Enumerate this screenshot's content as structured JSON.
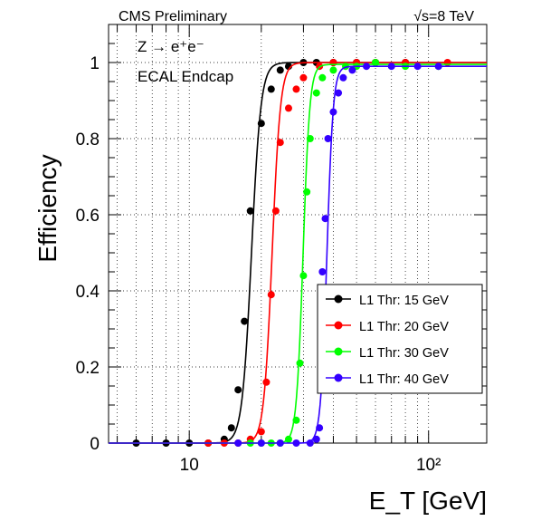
{
  "chart_data": {
    "type": "line",
    "header_left": "CMS Preliminary",
    "header_right": "√s=8 TeV",
    "annotations": [
      "Z → e⁺e⁻",
      "ECAL Endcap"
    ],
    "title": "",
    "xlabel": "E_T [GeV]",
    "ylabel": "Efficiency",
    "xscale": "log",
    "xlim": [
      4.6,
      175
    ],
    "ylim": [
      0,
      1.1
    ],
    "x_tick_labels": [
      "10",
      "10²"
    ],
    "y_tick_labels": [
      "0",
      "0.2",
      "0.4",
      "0.6",
      "0.8",
      "1"
    ],
    "y_ticks": [
      0,
      0.2,
      0.4,
      0.6,
      0.8,
      1
    ],
    "grid": true,
    "legend_position": "bottom-right",
    "series": [
      {
        "name": "L1 Thr: 15 GeV",
        "color": "#000000",
        "x": [
          6,
          8,
          10,
          12,
          14,
          15,
          16,
          17,
          18,
          20,
          22,
          24,
          26,
          30,
          34,
          40,
          50,
          60,
          80
        ],
        "y": [
          0,
          0,
          0,
          0,
          0.01,
          0.04,
          0.14,
          0.32,
          0.61,
          0.84,
          0.93,
          0.98,
          0.99,
          1.0,
          1.0,
          1.0,
          1.0,
          1.0,
          1.0
        ],
        "fit": {
          "mid": 18.2,
          "width": 0.045,
          "plateau": 1.0
        }
      },
      {
        "name": "L1 Thr: 20 GeV",
        "color": "#ff0000",
        "x": [
          12,
          14,
          16,
          18,
          20,
          21,
          22,
          23,
          24,
          26,
          28,
          30,
          35,
          40,
          50,
          60,
          80,
          120
        ],
        "y": [
          0,
          0,
          0,
          0.01,
          0.03,
          0.16,
          0.39,
          0.61,
          0.79,
          0.88,
          0.93,
          0.96,
          0.99,
          1.0,
          1.0,
          1.0,
          1.0,
          1.0
        ],
        "fit": {
          "mid": 22.2,
          "width": 0.04,
          "plateau": 1.0
        }
      },
      {
        "name": "L1 Thr: 30 GeV",
        "color": "#00ff00",
        "x": [
          18,
          20,
          22,
          24,
          26,
          28,
          29,
          30,
          31,
          32,
          34,
          36,
          40,
          45,
          50,
          60,
          80,
          110
        ],
        "y": [
          0,
          0,
          0,
          0,
          0.01,
          0.06,
          0.21,
          0.44,
          0.66,
          0.8,
          0.92,
          0.96,
          0.98,
          0.99,
          0.99,
          1.0,
          0.99,
          0.99
        ],
        "fit": {
          "mid": 29.9,
          "width": 0.032,
          "plateau": 0.995
        }
      },
      {
        "name": "L1 Thr: 40 GeV",
        "color": "#3300ff",
        "x": [
          16,
          20,
          24,
          28,
          32,
          34,
          35,
          36,
          37,
          38,
          40,
          42,
          44,
          48,
          55,
          70,
          90,
          110
        ],
        "y": [
          0,
          0,
          0,
          0,
          0,
          0.01,
          0.04,
          0.45,
          0.59,
          0.8,
          0.87,
          0.92,
          0.96,
          0.98,
          0.99,
          0.99,
          0.99,
          0.99
        ],
        "fit": {
          "mid": 37.6,
          "width": 0.03,
          "plateau": 0.99
        }
      }
    ]
  }
}
